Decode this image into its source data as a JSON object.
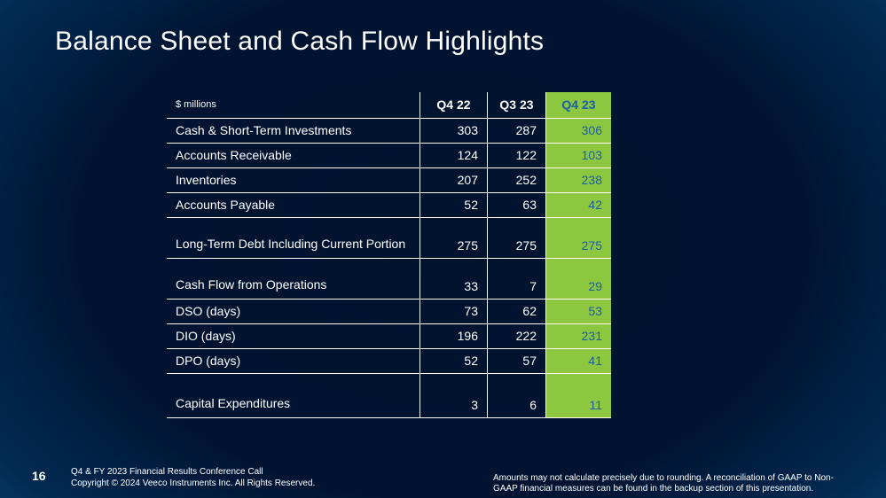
{
  "title": "Balance Sheet and Cash Flow Highlights",
  "table": {
    "unit_label": "$ millions",
    "columns": [
      "Q4 22",
      "Q3 23",
      "Q4 23"
    ],
    "rows": [
      {
        "label": "Cash & Short-Term Investments",
        "values": [
          "303",
          "287",
          "306"
        ]
      },
      {
        "label": "Accounts Receivable",
        "values": [
          "124",
          "122",
          "103"
        ]
      },
      {
        "label": "Inventories",
        "values": [
          "207",
          "252",
          "238"
        ]
      },
      {
        "label": "Accounts Payable",
        "values": [
          "52",
          "63",
          "42"
        ]
      },
      {
        "label": "Long-Term Debt Including Current Portion",
        "values": [
          "275",
          "275",
          "275"
        ]
      },
      {
        "label": "Cash Flow from Operations",
        "values": [
          "33",
          "7",
          "29"
        ]
      },
      {
        "label": "DSO (days)",
        "values": [
          "73",
          "62",
          "53"
        ]
      },
      {
        "label": "DIO (days)",
        "values": [
          "196",
          "222",
          "231"
        ]
      },
      {
        "label": "DPO (days)",
        "values": [
          "52",
          "57",
          "41"
        ]
      },
      {
        "label": "Capital Expenditures",
        "values": [
          "3",
          "6",
          "11"
        ]
      }
    ]
  },
  "footer": {
    "page_number": "16",
    "line1": "Q4 & FY 2023 Financial Results Conference Call",
    "line2": "Copyright © 2024 Veeco Instruments Inc. All Rights Reserved.",
    "disclaimer_line1": "Amounts may not calculate precisely due to rounding.  A reconciliation of GAAP to Non-",
    "disclaimer_line2": "GAAP financial measures can be found in the backup section of this presentation."
  },
  "colors": {
    "highlight_bg": "#8dc63f",
    "highlight_text": "#1a5fa8",
    "background": "#001432"
  }
}
